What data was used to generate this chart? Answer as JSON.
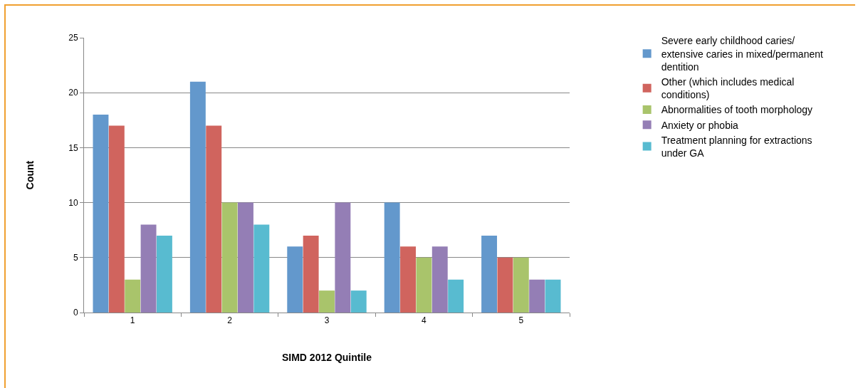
{
  "chart_data": {
    "type": "bar",
    "xlabel": "SIMD 2012 Quintile",
    "ylabel": "Count",
    "categories": [
      "1",
      "2",
      "3",
      "4",
      "5"
    ],
    "series": [
      {
        "name": "Severe early childhood caries/ extensive caries in mixed/permanent dentition",
        "color": "#6398cc",
        "values": [
          18,
          21,
          6,
          10,
          7
        ]
      },
      {
        "name": "Other (which includes medical conditions)",
        "color": "#d0645e",
        "values": [
          17,
          17,
          7,
          6,
          5
        ]
      },
      {
        "name": "Abnormalities of tooth morphology",
        "color": "#a9c46b",
        "values": [
          3,
          10,
          2,
          5,
          5
        ]
      },
      {
        "name": "Anxiety or phobia",
        "color": "#947eb5",
        "values": [
          8,
          10,
          10,
          6,
          3
        ]
      },
      {
        "name": "Treatment planning for extractions under GA",
        "color": "#58bbd0",
        "values": [
          7,
          8,
          2,
          3,
          3
        ]
      }
    ],
    "ylim": [
      0,
      25
    ],
    "yticks": [
      0,
      5,
      10,
      15,
      20,
      25
    ],
    "grid": "y",
    "legend": "right"
  }
}
